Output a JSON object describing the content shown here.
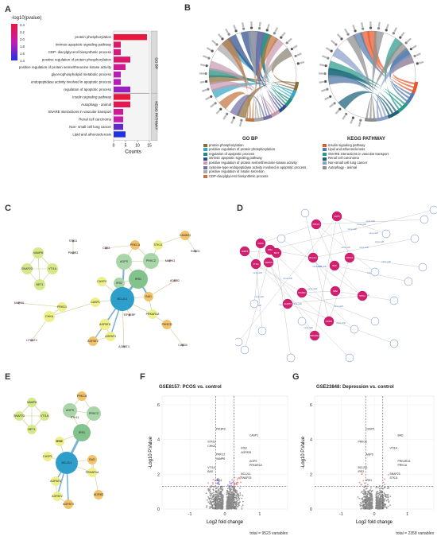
{
  "figure": {
    "panels": {
      "A": "A",
      "B": "B",
      "C": "C",
      "D": "D",
      "E": "E",
      "F": "F",
      "G": "G"
    }
  },
  "panelA": {
    "legend_title": "-log10(pvalue)",
    "legend_ticks": [
      "2.4",
      "2.2",
      "2.0",
      "1.8",
      "1.6",
      "1.4"
    ],
    "colors": {
      "high": "#e8173d",
      "mid": "#c51bb5",
      "low": "#2232e0"
    },
    "xlabel": "Counts",
    "x_ticks": [
      "0",
      "5",
      "10",
      "15"
    ],
    "group_labels": [
      "GO BP",
      "KEGG PATHWAY"
    ],
    "chart_data": {
      "type": "bar",
      "categories": [
        "protein phosphorylation",
        "intrinsic apoptotic signaling pathway",
        "CDP- diacylglycerol biosynthetic process",
        "positive regulation of protein phosphorylation",
        "positive regulation of protein serine/threonine kinase activity",
        "glycerophospholipid metabolic process",
        "endopeptidase activity involved in apoptotic process",
        "regulation of apoptotic process",
        "Insulin signaling pathway",
        "Autophagy - animal",
        "SNARE interactions in vascular transport",
        "Renal cell carcinoma",
        "Non- small cell lung cancer",
        "Lipid and atherosclerosis"
      ],
      "values": [
        14,
        3,
        3,
        7,
        5,
        3,
        3,
        7,
        7,
        7,
        4,
        4,
        4,
        5
      ],
      "pvalue_log": [
        2.5,
        2.3,
        2.2,
        2.3,
        2.1,
        1.9,
        1.9,
        1.8,
        2.5,
        2.4,
        2.1,
        2.0,
        1.6,
        1.4
      ],
      "xlabel": "Counts",
      "xlim": [
        0,
        15
      ]
    }
  },
  "panelB": {
    "titles": [
      "GO BP",
      "KEGG PATHWAY"
    ],
    "go_terms": [
      {
        "label": "protein phosphorylation",
        "color": "#8b6d3a"
      },
      {
        "label": "positive regulation of protein phosphorylation",
        "color": "#35a7c5"
      },
      {
        "label": "regulation of apoptotic process",
        "color": "#1e8c82"
      },
      {
        "label": "intrinsic apoptotic signaling pathway",
        "color": "#2c4e8e"
      },
      {
        "label": "positive regulation of protein serine/threonine kinase activity",
        "color": "#c89bb0"
      },
      {
        "label": "cysteine-type endopeptidase activity involved in apoptotic process",
        "color": "#6f6fa6"
      },
      {
        "label": "positive regulation of insulin secretion",
        "color": "#a9a9a9"
      },
      {
        "label": "CDP-diacylglycerol biosynthetic process",
        "color": "#c2763f"
      }
    ],
    "kegg_terms": [
      {
        "label": "Insulin signaling pathway",
        "color": "#e8582c"
      },
      {
        "label": "Lipid and atherosclerosis",
        "color": "#4f7bb0"
      },
      {
        "label": "SNARE interactions in vascular transport",
        "color": "#2a9b8a"
      },
      {
        "label": "Renal cell carcinoma",
        "color": "#1b5f7a"
      },
      {
        "label": "Non-small cell lung cancer",
        "color": "#8aa0c8"
      },
      {
        "label": "Autophagy - animal",
        "color": "#8e8e8e"
      }
    ]
  },
  "panelC": {
    "nodes": [
      "VAMP8",
      "SNAP23",
      "VTI1A",
      "BET1",
      "STX11",
      "PIK3R3",
      "CAMKK1",
      "PRKCA",
      "AGPS",
      "PRKCZ",
      "STK11",
      "IRS1",
      "IRS2",
      "BCL2L1",
      "BAD",
      "CASP1",
      "PRKAR1A",
      "AGPAT6",
      "AGPAT3",
      "AGPAT2",
      "AGPAT4",
      "EIF4EBP",
      "CASP3",
      "PIK3CD",
      "CAB39",
      "CHKA",
      "PRKD1",
      "LPCAT4",
      "MAPK6",
      "MAPK3",
      "CDS1",
      "INSIG1",
      "ADRB2"
    ]
  },
  "panelD": {
    "hub_nodes": [
      "IRS1",
      "PRKCZ",
      "AGPS",
      "BCL2L1",
      "BAD",
      "PRKCA",
      "IRS2",
      "STK11",
      "CASP1",
      "PIK3R3",
      "AGPAT6",
      "VAMP8",
      "VTI1A",
      "SNAP23",
      "BET1",
      "CHKA",
      "PRKAR1A"
    ],
    "edge_label": "mmu-miR"
  },
  "panelE": {
    "nodes": [
      "VAMP8",
      "SNAP23",
      "VTI1A",
      "BET1",
      "PRKCA",
      "AGPS",
      "PRKCZ",
      "IRS1",
      "IRS2",
      "STK11",
      "CASP1",
      "BCL2L1",
      "BAD",
      "PRKAR1A",
      "AGPAT6",
      "AGPAT2",
      "AGPAT3",
      "ADRB2",
      "SCH"
    ]
  },
  "panelF": {
    "title": "GSE8157: PCOS vs. control",
    "xlabel": "Log2 fold change",
    "ylabel": "-Log10 P.Value",
    "x_ticks": [
      "-1",
      "0",
      "1"
    ],
    "y_ticks": [
      "0",
      "2",
      "4",
      "6"
    ],
    "footer": "total = 9523 variables",
    "labels": [
      "IRS1",
      "BCL2L1",
      "VTI1A",
      "AGPS",
      "PRKCZ",
      "IRS2",
      "STK11",
      "CASP1",
      "PIK3R3",
      "SNAP23",
      "BAD",
      "PRKAR1A",
      "VAMP8",
      "AGPAT6",
      "CHKA"
    ],
    "chart_data": {
      "type": "scatter",
      "xlim": [
        -1.8,
        1.8
      ],
      "ylim": [
        0,
        6.5
      ],
      "fc_threshold": [
        -0.26,
        0.26
      ],
      "p_threshold": 1.3
    }
  },
  "panelG": {
    "title": "GSE23848: Depression vs. control",
    "xlabel": "Log2 fold change",
    "ylabel": "-Log10 P.Value",
    "x_ticks": [
      "-1",
      "0",
      "1"
    ],
    "y_ticks": [
      "0",
      "2",
      "4",
      "6"
    ],
    "footer": "total = 2358 variables",
    "labels": [
      "IRS1",
      "SNAP23",
      "BCL2L1",
      "PRKAR1A",
      "AGPS",
      "VTI1A",
      "PRKCZ",
      "BAD",
      "CASP1",
      "STK11",
      "IRS2",
      "PRKCA"
    ],
    "chart_data": {
      "type": "scatter",
      "xlim": [
        -1.8,
        1.8
      ],
      "ylim": [
        0,
        6.5
      ],
      "fc_threshold": [
        -0.26,
        0.26
      ],
      "p_threshold": 1.3
    }
  }
}
